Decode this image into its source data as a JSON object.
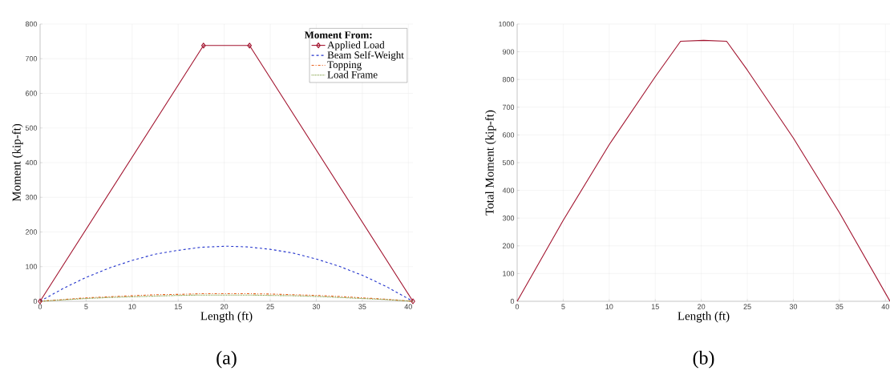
{
  "chart_data": [
    {
      "type": "line",
      "xlabel": "Length (ft)",
      "ylabel": "Moment (kip-ft)",
      "legend_title": "Moment From:",
      "legend": "top right",
      "grid": true,
      "xlim": [
        0,
        40.5
      ],
      "ylim": [
        0,
        800
      ],
      "xticks": [
        0,
        5,
        10,
        15,
        20,
        25,
        30,
        35,
        40
      ],
      "yticks": [
        0,
        100,
        200,
        300,
        400,
        500,
        600,
        700,
        800
      ],
      "annotations": [
        "(a)"
      ],
      "series": [
        {
          "name": "Applied Load",
          "color": "#a2142f",
          "marker": "diamond",
          "line_style": "solid",
          "x": [
            0,
            17.75,
            22.75,
            40.5
          ],
          "values": [
            0,
            738,
            738,
            0
          ]
        },
        {
          "name": "Beam Self-Weight",
          "color": "#2233cc",
          "marker": "none",
          "line_style": "dashed",
          "x": [
            0,
            2.5,
            5,
            7.5,
            10,
            12.5,
            15,
            17.5,
            20.25,
            22.5,
            25,
            27.5,
            30,
            32.5,
            35,
            37.5,
            40.5
          ],
          "values": [
            0,
            37,
            69,
            96,
            118,
            136,
            147,
            156,
            159,
            157,
            150,
            139,
            122,
            101,
            75,
            44,
            0
          ]
        },
        {
          "name": "Topping",
          "color": "#e8601c",
          "marker": "none",
          "line_style": "dashdot",
          "x": [
            0,
            2.5,
            5,
            7.5,
            10,
            12.5,
            15,
            17.5,
            20.25,
            22.5,
            25,
            27.5,
            30,
            32.5,
            35,
            37.5,
            40.5
          ],
          "values": [
            0,
            5,
            10,
            13,
            16,
            19,
            20,
            22,
            22,
            22,
            21,
            19,
            17,
            14,
            10,
            6,
            0
          ]
        },
        {
          "name": "Load Frame",
          "color": "#6b8e23",
          "marker": "none",
          "line_style": "dotted",
          "x": [
            0,
            2.5,
            5,
            7.5,
            10,
            12.5,
            15,
            17.5,
            20.25,
            22.5,
            25,
            27.5,
            30,
            32.5,
            35,
            37.5,
            40.5
          ],
          "values": [
            0,
            4,
            8,
            11,
            13,
            15,
            17,
            18,
            18,
            18,
            17,
            16,
            14,
            11,
            8,
            5,
            0
          ]
        }
      ]
    },
    {
      "type": "line",
      "xlabel": "Length (ft)",
      "ylabel": "Total Moment (kip-ft)",
      "grid": true,
      "xlim": [
        0,
        40.5
      ],
      "ylim": [
        0,
        1000
      ],
      "xticks": [
        0,
        5,
        10,
        15,
        20,
        25,
        30,
        35,
        40
      ],
      "yticks": [
        0,
        100,
        200,
        300,
        400,
        500,
        600,
        700,
        800,
        900,
        1000
      ],
      "annotations": [
        "(b)"
      ],
      "series": [
        {
          "color": "#a2142f",
          "line_style": "solid",
          "x": [
            0,
            5,
            10,
            15,
            17.75,
            20.25,
            22.75,
            25,
            30,
            35,
            40.5
          ],
          "values": [
            0,
            292,
            565,
            810,
            938,
            941,
            938,
            834,
            589,
            320,
            0
          ]
        }
      ]
    }
  ]
}
